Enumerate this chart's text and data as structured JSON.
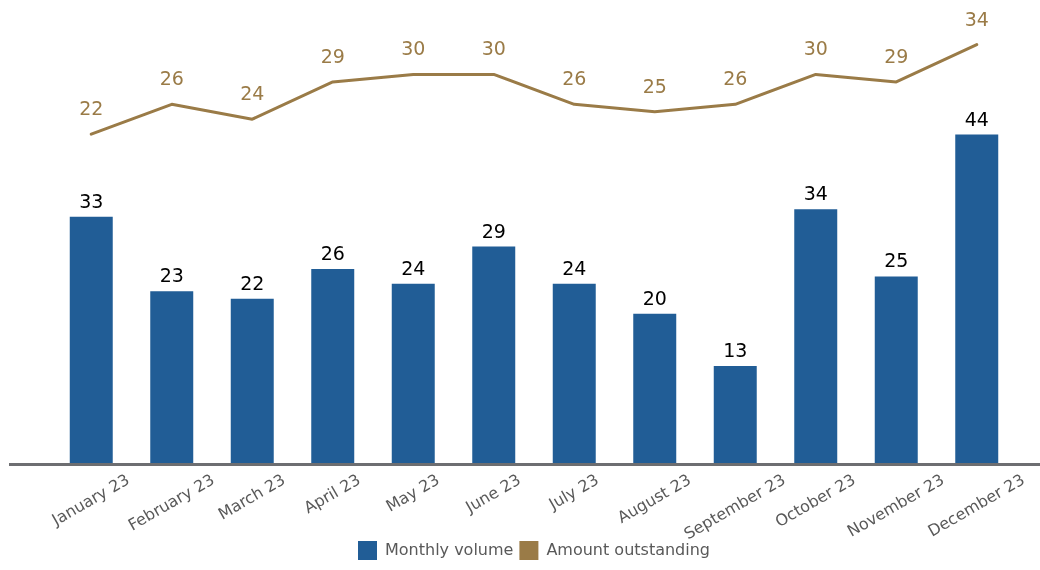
{
  "chart_data": {
    "type": "bar",
    "categories": [
      "January 23",
      "February 23",
      "March 23",
      "April 23",
      "May 23",
      "June 23",
      "July 23",
      "August 23",
      "September 23",
      "October 23",
      "November 23",
      "December 23"
    ],
    "series": [
      {
        "name": "Monthly volume",
        "color": "#215d96",
        "values": [
          33,
          23,
          22,
          26,
          24,
          29,
          24,
          20,
          13,
          34,
          25,
          44
        ]
      },
      {
        "name": "Amount outstanding",
        "type": "line",
        "axis": "y2",
        "color": "#9a7b47",
        "values": [
          22,
          26,
          24,
          29,
          30,
          30,
          26,
          25,
          26,
          30,
          29,
          34
        ]
      }
    ],
    "data_labels": true,
    "legend": "bottom",
    "tick_labels": "x"
  }
}
